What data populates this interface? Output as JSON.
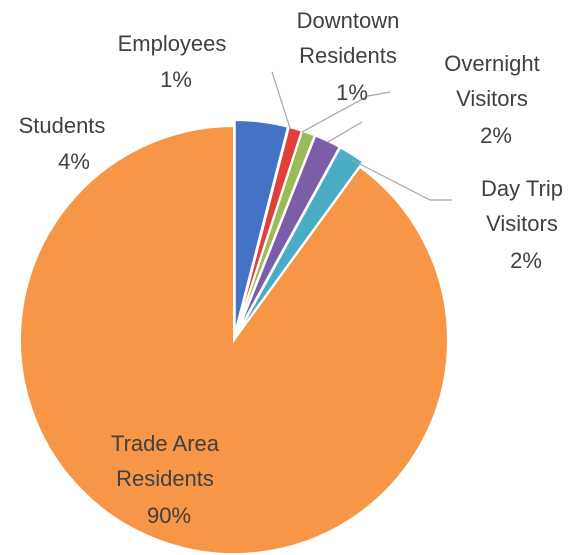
{
  "chart_data": {
    "type": "pie",
    "categories": [
      "Students",
      "Employees",
      "Downtown Residents",
      "Overnight Visitors",
      "Day Trip Visitors",
      "Trade Area Residents"
    ],
    "values": [
      4,
      1,
      1,
      2,
      2,
      90
    ],
    "value_labels": [
      "4%",
      "1%",
      "1%",
      "2%",
      "2%",
      "90%"
    ],
    "colors": [
      "#4472c4",
      "#e0403a",
      "#9bbb59",
      "#7b5ea7",
      "#4bacc6",
      "#f79646"
    ]
  }
}
